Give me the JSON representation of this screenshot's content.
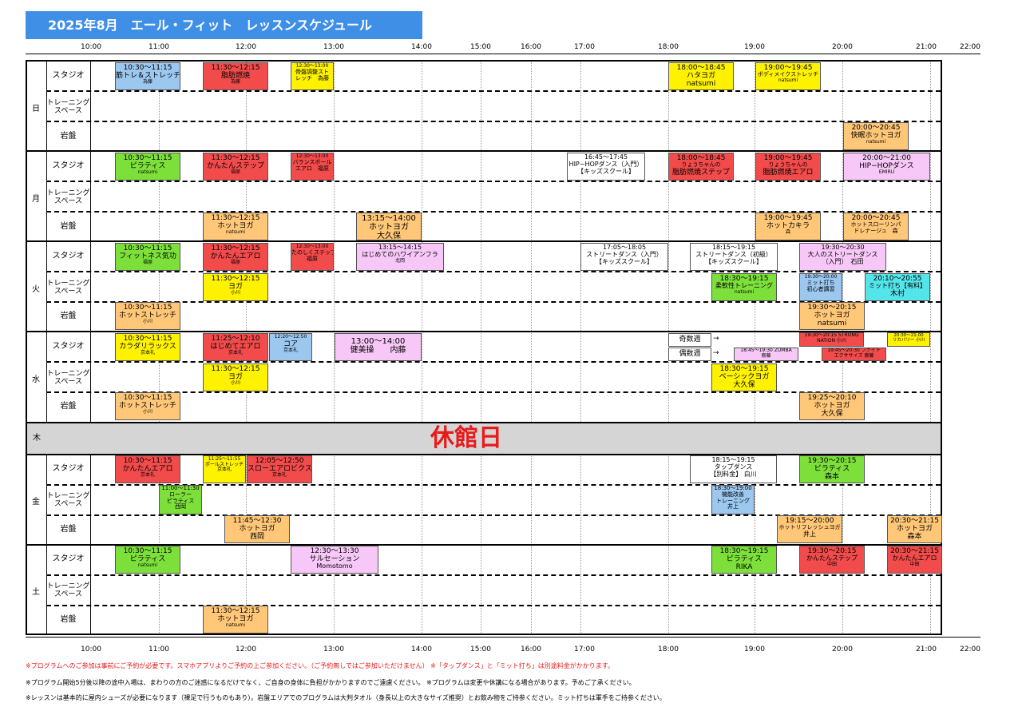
{
  "title": "2025年8月　エール・フィット　レッスンスケジュール",
  "hours": [
    "10:00",
    "11:00",
    "12:00",
    "13:00",
    "14:00",
    "15:00",
    "16:00",
    "17:00",
    "18:00",
    "19:00",
    "20:00",
    "21:00",
    "22:00"
  ],
  "days": {
    "sun": "日",
    "mon": "月",
    "tue": "火",
    "wed": "水",
    "thu": "木",
    "fri": "金",
    "sat": "土"
  },
  "rooms": {
    "studio": "スタジオ",
    "training": "トレーニング\nスペース",
    "ganban": "岩盤"
  },
  "closed_label": "休館日",
  "wed_odd": "奇数週",
  "wed_even": "偶数週",
  "arrow": "→",
  "lessons": {
    "sun_s1": {
      "t1": "10:30〜11:15",
      "t2": "筋トレ＆ストレッチ",
      "t3": "為藤"
    },
    "sun_s2": {
      "t1": "11:30〜12:15",
      "t2": "脂肪燃焼",
      "t3": "為藤"
    },
    "sun_s3": {
      "t1": "12:30〜13:00",
      "t2": "骨盤調整スト",
      "t3": "レッチ　為藤"
    },
    "sun_s4": {
      "t1": "18:00〜18:45",
      "t2": "ハタヨガ",
      "t3": "natsumi"
    },
    "sun_s5": {
      "t1": "19:00〜19:45",
      "t2": "ボディメイクストレッチ",
      "t3": "natsumi"
    },
    "sun_g1": {
      "t1": "20:00〜20:45",
      "t2": "快眠ホットヨガ",
      "t3": "natsumi"
    },
    "mon_s1": {
      "t1": "10:30〜11:15",
      "t2": "ピラティス",
      "t3": "natsumi"
    },
    "mon_s2": {
      "t1": "11:30〜12:15",
      "t2": "かんたんステップ",
      "t3": "福原"
    },
    "mon_s3": {
      "t1": "12:30〜13:00",
      "t2": "バランスボール",
      "t3": "エアロ　福原"
    },
    "mon_s4": {
      "t1": "16:45〜17:45",
      "t2": "HIP−HOPダンス（入門）",
      "t3": "【キッズスクール】"
    },
    "mon_s5": {
      "t1": "18:00〜18:45",
      "t2": "りょうちゃんの",
      "t3": "脂肪燃焼ステップ"
    },
    "mon_s6": {
      "t1": "19:00〜19:45",
      "t2": "りょうちゃんの",
      "t3": "脂肪燃焼エアロ"
    },
    "mon_s7": {
      "t1": "20:00〜21:00",
      "t2": "HIP−HOPダンス",
      "t3": "EMIRU"
    },
    "mon_g1": {
      "t1": "11:30〜12:15",
      "t2": "ホットヨガ",
      "t3": "natsumi"
    },
    "mon_g2": {
      "t1": "13:15〜14:00",
      "t2": "ホットヨガ",
      "t3": "大久保"
    },
    "mon_g3": {
      "t1": "19:00〜19:45",
      "t2": "ホットカキラ",
      "t3": "森"
    },
    "mon_g4": {
      "t1": "20:00〜20:45",
      "t2": "ホットスローリンパ",
      "t3": "ドレナージュ　森"
    },
    "tue_s1": {
      "t1": "10:30〜11:15",
      "t2": "フィットネス気功",
      "t3": "福原"
    },
    "tue_s2": {
      "t1": "11:30〜12:15",
      "t2": "かんたんエアロ",
      "t3": "福原"
    },
    "tue_s3": {
      "t1": "12:30〜13:00",
      "t2": "たのしくステップ",
      "t3": "福原"
    },
    "tue_s4": {
      "t1": "13:15〜14:15",
      "t2": "はじめてのハワイアンフラ",
      "t3": "北岡"
    },
    "tue_s5": {
      "t1": "17:05〜18:05",
      "t2": "ストリートダンス（入門）",
      "t3": "【キッズスクール】"
    },
    "tue_s6": {
      "t1": "18:15〜19:15",
      "t2": "ストリートダンス（初級）",
      "t3": "【キッズスクール】"
    },
    "tue_s7": {
      "t1": "19:30〜20:30",
      "t2": "大人のストリートダンス",
      "t3": "（入門）　石田"
    },
    "tue_t1": {
      "t1": "11:30〜12:15",
      "t2": "ヨガ",
      "t3": "小川"
    },
    "tue_t2": {
      "t1": "18:30〜19:15",
      "t2": "柔軟性トレーニング",
      "t3": "natsumi"
    },
    "tue_t3": {
      "t1": "19:30〜20:00",
      "t2": "ミット打ち",
      "t3": "初心者講習"
    },
    "tue_t4": {
      "t1": "20:10〜20:55",
      "t2": "ミット打ち【有料】",
      "t3": "木村"
    },
    "tue_g1": {
      "t1": "10:30〜11:15",
      "t2": "ホットストレッチ",
      "t3": "小川"
    },
    "tue_g2": {
      "t1": "19:30〜20:15",
      "t2": "ホットヨガ",
      "t3": "natsumi"
    },
    "wed_s1": {
      "t1": "10:30〜11:15",
      "t2": "カラダリラックス",
      "t3": "京本礼"
    },
    "wed_s2": {
      "t1": "11:25〜12:10",
      "t2": "はじめてエアロ",
      "t3": "京本礼"
    },
    "wed_s3": {
      "t1": "12:20〜12:50",
      "t2": "コア",
      "t3": "京本礼"
    },
    "wed_s4": {
      "t1": "13:00〜14:00",
      "t2": "健美操　　内藤",
      "t3": ""
    },
    "wed_s5": {
      "t1": "19:30〜20:15 STRONG",
      "t2": "NATION 小川",
      "t3": ""
    },
    "wed_s6": {
      "t1": "20:30〜21:00",
      "t2": "リカバリー 小川",
      "t3": ""
    },
    "wed_s7": {
      "t1": "18:45〜19:30 ZUMBA",
      "t2": "齋藤",
      "t3": ""
    },
    "wed_s8": {
      "t1": "19:45〜20:30 ファイト",
      "t2": "エクササイズ 齋藤",
      "t3": ""
    },
    "wed_t1": {
      "t1": "11:30〜12:15",
      "t2": "ヨガ",
      "t3": "小川"
    },
    "wed_t2": {
      "t1": "18:30〜19:15",
      "t2": "ベーシックヨガ",
      "t3": "大久保"
    },
    "wed_g1": {
      "t1": "10:30〜11:15",
      "t2": "ホットストレッチ",
      "t3": "小川"
    },
    "wed_g2": {
      "t1": "19:25〜20:10",
      "t2": "ホットヨガ",
      "t3": "大久保"
    },
    "fri_s1": {
      "t1": "10:30〜11:15",
      "t2": "かんたんエアロ",
      "t3": "京本礼"
    },
    "fri_s2": {
      "t1": "11:25〜11:55",
      "t2": "ポールストレッチ",
      "t3": "京本礼"
    },
    "fri_s3": {
      "t1": "12:05〜12:50",
      "t2": "スローエアロビクス",
      "t3": "京本礼"
    },
    "fri_s4": {
      "t1": "18:15〜19:15",
      "t2": "タップダンス",
      "t3": "【別料金】 白川"
    },
    "fri_s5": {
      "t1": "19:30〜20:15",
      "t2": "ピラティス",
      "t3": "森本"
    },
    "fri_t1": {
      "t1": "11:00〜11:30",
      "t2": "ローラー",
      "t3": "ピラティス",
      "t4": "西岡"
    },
    "fri_t2": {
      "t1": "18:30〜19:00",
      "t2": "機能改善",
      "t3": "トレーニング",
      "t4": "井上"
    },
    "fri_g1": {
      "t1": "11:45〜12:30",
      "t2": "ホットヨガ",
      "t3": "西岡"
    },
    "fri_g2": {
      "t1": "19:15〜20:00",
      "t2": "ホットリフレッシュヨガ",
      "t3": "井上"
    },
    "fri_g3": {
      "t1": "20:30〜21:15",
      "t2": "ホットヨガ",
      "t3": "森本"
    },
    "sat_s1": {
      "t1": "10:30〜11:15",
      "t2": "ピラティス",
      "t3": "natsumi"
    },
    "sat_s2": {
      "t1": "12:30〜13:30",
      "t2": "サルセーション",
      "t3": "Momotomo"
    },
    "sat_s3": {
      "t1": "18:30〜19:15",
      "t2": "ピラティス",
      "t3": "RIKA"
    },
    "sat_s4": {
      "t1": "19:30〜20:15",
      "t2": "かんたんステップ",
      "t3": "中田"
    },
    "sat_s5": {
      "t1": "20:30〜21:15",
      "t2": "かんたんエアロ",
      "t3": "中田"
    },
    "sat_g1": {
      "t1": "11:30〜12:15",
      "t2": "ホットヨガ",
      "t3": "natsumi"
    }
  },
  "notes": [
    "※プログラムへのご参加は事前にご予約が必要です。スマホアプリよりご予約の上ご参加ください。（ご予約無しではご参加いただけません） ※「タップダンス」と「ミット打ち」は別途料金がかかります。",
    "※プログラム開始5分後以降の途中入場は、まわりの方のご迷惑になるだけでなく、ご自身の身体に負担がかかりますのでご遠慮ください。 ※プログラムは変更や休講になる場合があります。予めご了承ください。",
    "※レッスンは基本的に屋内シューズが必要になります（裸足で行うものもあり）。岩盤エリアでのプログラムは大判タオル（身長以上の大きなサイズ推奨）とお飲み物をご持参ください。ミット打ちは軍手をご持参ください。"
  ],
  "colors": {
    "title_bg": "#3f8fe6",
    "closed_bg": "#d5d5d5",
    "closed_text": "#e81a1a",
    "note_red": "#e8191a"
  }
}
